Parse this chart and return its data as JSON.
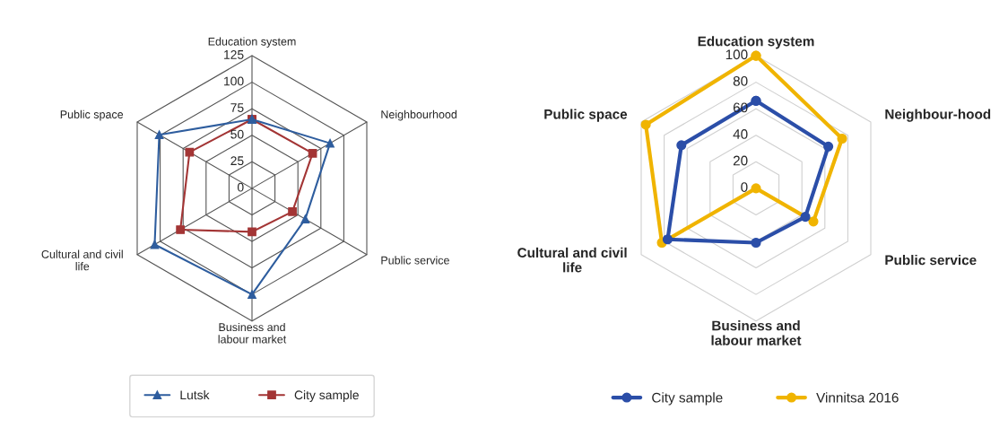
{
  "chart_data": [
    {
      "type": "radar",
      "categories": [
        "Education system",
        "Neighbourhood",
        "Public service",
        "Business and labour market",
        "Cultural and civil life",
        "Public space"
      ],
      "ylim": [
        0,
        125
      ],
      "yticks": [
        0,
        25,
        50,
        75,
        100,
        125
      ],
      "grid": true,
      "legend": "bottom",
      "series": [
        {
          "name": "Lutsk",
          "color": "#2e5d9e",
          "marker": "triangle",
          "values": [
            65,
            85,
            58,
            100,
            106,
            101
          ]
        },
        {
          "name": "City sample",
          "color": "#a33535",
          "marker": "square",
          "values": [
            65,
            66,
            44,
            41,
            78,
            68
          ]
        }
      ]
    },
    {
      "type": "radar",
      "categories": [
        "Education system",
        "Neighbour-hood",
        "Public service",
        "Business and labour market",
        "Cultural and civil life",
        "Public space"
      ],
      "ylim": [
        0,
        100
      ],
      "yticks": [
        0,
        20,
        40,
        60,
        80,
        100
      ],
      "grid": "y",
      "legend": "bottom",
      "marker": "circle",
      "series": [
        {
          "name": "City sample",
          "color": "#2b4ea8",
          "values": [
            66,
            63,
            43,
            41,
            77,
            65
          ]
        },
        {
          "name": "Vinnitsa 2016",
          "color": "#f0b400",
          "values": [
            100,
            75,
            50,
            0,
            82,
            96
          ]
        }
      ]
    }
  ]
}
